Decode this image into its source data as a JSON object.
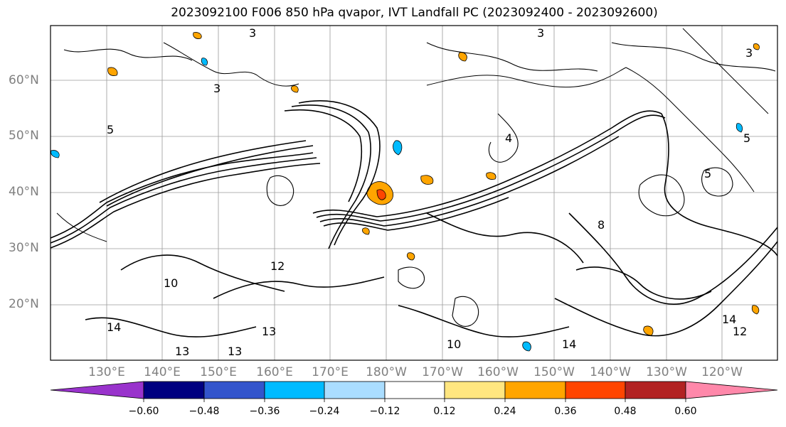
{
  "title": "2023092100 F006 850 hPa qvapor, IVT Landfall PC (2023092400 - 2023092600)",
  "lat_labels": [
    "60°N",
    "50°N",
    "40°N",
    "30°N",
    "20°N"
  ],
  "lon_labels": [
    "130°E",
    "140°E",
    "150°E",
    "160°E",
    "170°E",
    "180°W",
    "170°W",
    "160°W",
    "150°W",
    "140°W",
    "130°W",
    "120°W"
  ],
  "colorbar": {
    "ticks": [
      "−0.60",
      "−0.48",
      "−0.36",
      "−0.24",
      "−0.12",
      "0.12",
      "0.24",
      "0.36",
      "0.48",
      "0.60"
    ],
    "colors": [
      "#9933cc",
      "#000080",
      "#3355cc",
      "#00bbff",
      "#aaddff",
      "#ffffff",
      "#ffe680",
      "#ffa500",
      "#ff4500",
      "#b22222",
      "#ff88aa"
    ]
  }
}
